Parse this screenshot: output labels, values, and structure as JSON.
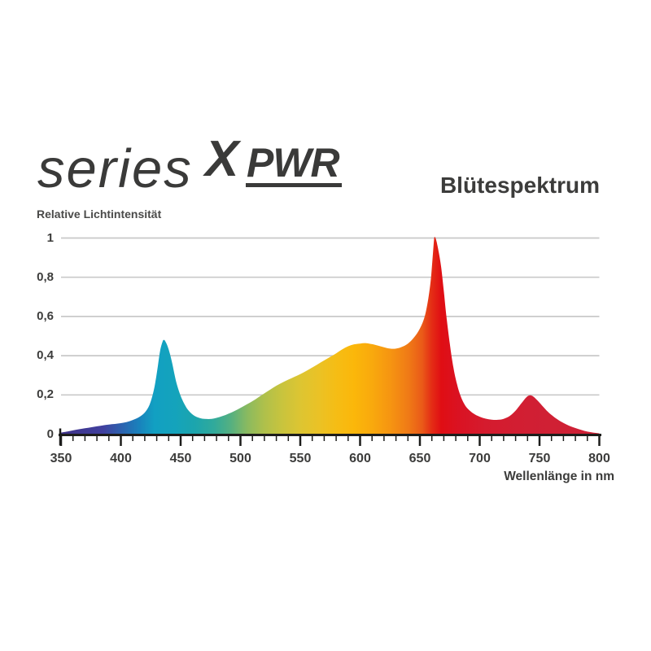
{
  "logo": {
    "series": "series",
    "x": "X",
    "pwr": "PWR",
    "color": "#3a3a39"
  },
  "title": "Blütespektrum",
  "chart_data": {
    "type": "area",
    "title": "Blütespektrum",
    "series_name": "series X PWR Blütespektrum",
    "xlabel": "Wellenlänge in nm",
    "ylabel": "Relative Lichtintensität",
    "xlim": [
      350,
      800
    ],
    "ylim": [
      0,
      1
    ],
    "grid": "horizontal",
    "grid_color": "#c9c9c9",
    "axis_color": "#1d1d1b",
    "label_color": "#3c3c3b",
    "x_ticks": [
      {
        "value": 350,
        "label": "350"
      },
      {
        "value": 400,
        "label": "400"
      },
      {
        "value": 450,
        "label": "450"
      },
      {
        "value": 500,
        "label": "500"
      },
      {
        "value": 550,
        "label": "550"
      },
      {
        "value": 600,
        "label": "600"
      },
      {
        "value": 650,
        "label": "650"
      },
      {
        "value": 700,
        "label": "700"
      },
      {
        "value": 750,
        "label": "750"
      },
      {
        "value": 800,
        "label": "800"
      }
    ],
    "x_tick_minor_step": 10,
    "y_ticks": [
      {
        "value": 0,
        "label": "0"
      },
      {
        "value": 0.2,
        "label": "0,2"
      },
      {
        "value": 0.4,
        "label": "0,4"
      },
      {
        "value": 0.6,
        "label": "0,6"
      },
      {
        "value": 0.8,
        "label": "0,8"
      },
      {
        "value": 1,
        "label": "1"
      }
    ],
    "peaks": [
      {
        "wavelength_nm": 436,
        "intensity": 0.48,
        "color": "cyan-blue"
      },
      {
        "wavelength_nm": 600,
        "intensity": 0.46,
        "color": "yellow-orange broad hump"
      },
      {
        "wavelength_nm": 662,
        "intensity": 1.0,
        "color": "deep red"
      },
      {
        "wavelength_nm": 742,
        "intensity": 0.2,
        "color": "far red"
      }
    ],
    "points": [
      [
        350,
        0.008
      ],
      [
        355,
        0.013
      ],
      [
        360,
        0.019
      ],
      [
        365,
        0.025
      ],
      [
        370,
        0.03
      ],
      [
        375,
        0.035
      ],
      [
        380,
        0.04
      ],
      [
        385,
        0.045
      ],
      [
        390,
        0.049
      ],
      [
        395,
        0.052
      ],
      [
        400,
        0.056
      ],
      [
        405,
        0.062
      ],
      [
        410,
        0.072
      ],
      [
        415,
        0.086
      ],
      [
        420,
        0.11
      ],
      [
        424,
        0.15
      ],
      [
        427,
        0.21
      ],
      [
        429,
        0.27
      ],
      [
        431,
        0.35
      ],
      [
        433,
        0.43
      ],
      [
        435,
        0.473
      ],
      [
        436,
        0.48
      ],
      [
        437,
        0.475
      ],
      [
        439,
        0.45
      ],
      [
        441,
        0.41
      ],
      [
        443,
        0.36
      ],
      [
        445,
        0.3
      ],
      [
        447,
        0.25
      ],
      [
        450,
        0.195
      ],
      [
        453,
        0.155
      ],
      [
        456,
        0.125
      ],
      [
        460,
        0.1
      ],
      [
        464,
        0.086
      ],
      [
        468,
        0.079
      ],
      [
        472,
        0.077
      ],
      [
        476,
        0.078
      ],
      [
        480,
        0.083
      ],
      [
        485,
        0.092
      ],
      [
        490,
        0.104
      ],
      [
        495,
        0.118
      ],
      [
        500,
        0.134
      ],
      [
        505,
        0.151
      ],
      [
        510,
        0.168
      ],
      [
        515,
        0.188
      ],
      [
        520,
        0.208
      ],
      [
        525,
        0.228
      ],
      [
        530,
        0.247
      ],
      [
        535,
        0.263
      ],
      [
        540,
        0.278
      ],
      [
        545,
        0.292
      ],
      [
        550,
        0.306
      ],
      [
        555,
        0.322
      ],
      [
        560,
        0.34
      ],
      [
        565,
        0.358
      ],
      [
        570,
        0.376
      ],
      [
        575,
        0.394
      ],
      [
        580,
        0.412
      ],
      [
        585,
        0.432
      ],
      [
        590,
        0.448
      ],
      [
        595,
        0.458
      ],
      [
        600,
        0.462
      ],
      [
        605,
        0.464
      ],
      [
        610,
        0.459
      ],
      [
        615,
        0.451
      ],
      [
        620,
        0.443
      ],
      [
        625,
        0.436
      ],
      [
        630,
        0.436
      ],
      [
        635,
        0.445
      ],
      [
        640,
        0.462
      ],
      [
        645,
        0.492
      ],
      [
        650,
        0.538
      ],
      [
        654,
        0.6
      ],
      [
        657,
        0.69
      ],
      [
        659,
        0.78
      ],
      [
        660,
        0.85
      ],
      [
        661,
        0.93
      ],
      [
        662,
        1.0
      ],
      [
        663,
        1.0
      ],
      [
        664,
        0.98
      ],
      [
        666,
        0.92
      ],
      [
        668,
        0.84
      ],
      [
        670,
        0.73
      ],
      [
        672,
        0.61
      ],
      [
        675,
        0.46
      ],
      [
        678,
        0.34
      ],
      [
        681,
        0.255
      ],
      [
        684,
        0.195
      ],
      [
        687,
        0.155
      ],
      [
        690,
        0.13
      ],
      [
        695,
        0.104
      ],
      [
        700,
        0.089
      ],
      [
        705,
        0.079
      ],
      [
        710,
        0.074
      ],
      [
        715,
        0.073
      ],
      [
        720,
        0.078
      ],
      [
        725,
        0.092
      ],
      [
        730,
        0.12
      ],
      [
        735,
        0.158
      ],
      [
        739,
        0.188
      ],
      [
        742,
        0.198
      ],
      [
        745,
        0.191
      ],
      [
        748,
        0.173
      ],
      [
        752,
        0.147
      ],
      [
        756,
        0.12
      ],
      [
        760,
        0.098
      ],
      [
        765,
        0.075
      ],
      [
        770,
        0.057
      ],
      [
        775,
        0.042
      ],
      [
        780,
        0.031
      ],
      [
        785,
        0.021
      ],
      [
        790,
        0.013
      ],
      [
        795,
        0.008
      ],
      [
        800,
        0.004
      ]
    ],
    "fill_gradient_stops": [
      {
        "wavelength_nm": 350,
        "color": "#3F3288"
      },
      {
        "wavelength_nm": 385,
        "color": "#41409F"
      },
      {
        "wavelength_nm": 402,
        "color": "#2A65B0"
      },
      {
        "wavelength_nm": 415,
        "color": "#1981BC"
      },
      {
        "wavelength_nm": 428,
        "color": "#12A0C2"
      },
      {
        "wavelength_nm": 445,
        "color": "#14A3BC"
      },
      {
        "wavelength_nm": 462,
        "color": "#1CA5AD"
      },
      {
        "wavelength_nm": 478,
        "color": "#31AA9B"
      },
      {
        "wavelength_nm": 492,
        "color": "#55B080"
      },
      {
        "wavelength_nm": 506,
        "color": "#8BBA5F"
      },
      {
        "wavelength_nm": 520,
        "color": "#AFC04B"
      },
      {
        "wavelength_nm": 535,
        "color": "#C9C43D"
      },
      {
        "wavelength_nm": 550,
        "color": "#DDC532"
      },
      {
        "wavelength_nm": 565,
        "color": "#EAC226"
      },
      {
        "wavelength_nm": 580,
        "color": "#F5BD15"
      },
      {
        "wavelength_nm": 595,
        "color": "#FBB70A"
      },
      {
        "wavelength_nm": 610,
        "color": "#F9A90D"
      },
      {
        "wavelength_nm": 625,
        "color": "#F69511"
      },
      {
        "wavelength_nm": 640,
        "color": "#F07B16"
      },
      {
        "wavelength_nm": 652,
        "color": "#EA5A18"
      },
      {
        "wavelength_nm": 660,
        "color": "#E42C15"
      },
      {
        "wavelength_nm": 668,
        "color": "#E00E14"
      },
      {
        "wavelength_nm": 682,
        "color": "#DA1222"
      },
      {
        "wavelength_nm": 705,
        "color": "#D51B2E"
      },
      {
        "wavelength_nm": 740,
        "color": "#D11F33"
      },
      {
        "wavelength_nm": 800,
        "color": "#CD2136"
      }
    ]
  }
}
